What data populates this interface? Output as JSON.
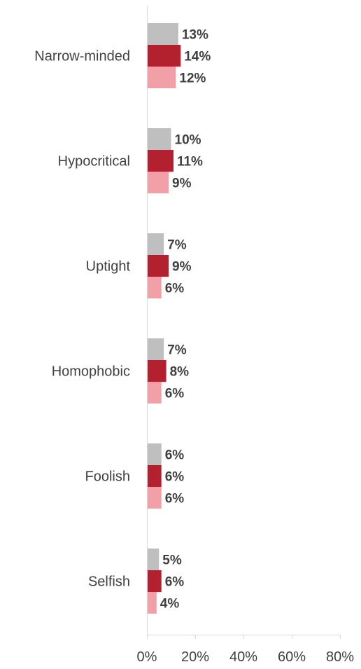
{
  "chart_data": {
    "type": "bar",
    "orientation": "horizontal",
    "categories": [
      "Narrow-minded",
      "Hypocritical",
      "Uptight",
      "Homophobic",
      "Foolish",
      "Selfish"
    ],
    "series": [
      {
        "values": [
          13,
          10,
          7,
          7,
          6,
          5
        ],
        "color": "#bfbfbf"
      },
      {
        "values": [
          14,
          11,
          9,
          8,
          6,
          6
        ],
        "color": "#b3202e"
      },
      {
        "values": [
          12,
          9,
          6,
          6,
          6,
          4
        ],
        "color": "#f0a0a6"
      }
    ],
    "value_suffix": "%",
    "xlim": [
      0,
      80
    ],
    "xticks": [
      0,
      20,
      40,
      60,
      80
    ],
    "xtick_labels": [
      "0%",
      "20%",
      "40%",
      "60%",
      "80%"
    ],
    "grid": false,
    "legend": "none"
  }
}
